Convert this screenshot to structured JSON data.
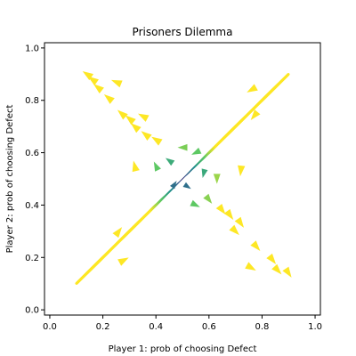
{
  "chart_data": {
    "type": "streamplot",
    "title": "Prisoners Dilemma",
    "xlabel": "Player 1: prob of choosing Defect",
    "ylabel": "Player 2: prob of choosing Defect",
    "xlim": [
      -0.02,
      1.02
    ],
    "ylim": [
      -0.02,
      1.02
    ],
    "xticks": [
      "0.0",
      "0.2",
      "0.4",
      "0.6",
      "0.8",
      "1.0"
    ],
    "yticks": [
      "0.0",
      "0.2",
      "0.4",
      "0.6",
      "0.8",
      "1.0"
    ],
    "grid": false,
    "colormap": "viridis",
    "field": {
      "x_range": [
        0.1,
        0.9
      ],
      "y_range": [
        0.1,
        0.9
      ],
      "color_by": "speed"
    },
    "arrow_anchors": [
      {
        "x": 0.14,
        "y": 0.9
      },
      {
        "x": 0.16,
        "y": 0.88
      },
      {
        "x": 0.18,
        "y": 0.85
      },
      {
        "x": 0.22,
        "y": 0.81
      },
      {
        "x": 0.25,
        "y": 0.87
      },
      {
        "x": 0.27,
        "y": 0.75
      },
      {
        "x": 0.3,
        "y": 0.73
      },
      {
        "x": 0.32,
        "y": 0.7
      },
      {
        "x": 0.35,
        "y": 0.74
      },
      {
        "x": 0.36,
        "y": 0.67
      },
      {
        "x": 0.4,
        "y": 0.65
      },
      {
        "x": 0.32,
        "y": 0.55
      },
      {
        "x": 0.4,
        "y": 0.55
      },
      {
        "x": 0.45,
        "y": 0.57
      },
      {
        "x": 0.5,
        "y": 0.62
      },
      {
        "x": 0.55,
        "y": 0.6
      },
      {
        "x": 0.47,
        "y": 0.48
      },
      {
        "x": 0.52,
        "y": 0.47
      },
      {
        "x": 0.58,
        "y": 0.52
      },
      {
        "x": 0.63,
        "y": 0.5
      },
      {
        "x": 0.55,
        "y": 0.4
      },
      {
        "x": 0.6,
        "y": 0.42
      },
      {
        "x": 0.65,
        "y": 0.38
      },
      {
        "x": 0.68,
        "y": 0.36
      },
      {
        "x": 0.7,
        "y": 0.3
      },
      {
        "x": 0.72,
        "y": 0.33
      },
      {
        "x": 0.78,
        "y": 0.24
      },
      {
        "x": 0.76,
        "y": 0.16
      },
      {
        "x": 0.84,
        "y": 0.19
      },
      {
        "x": 0.86,
        "y": 0.15
      },
      {
        "x": 0.9,
        "y": 0.14
      },
      {
        "x": 0.26,
        "y": 0.3
      },
      {
        "x": 0.28,
        "y": 0.19
      },
      {
        "x": 0.77,
        "y": 0.74
      },
      {
        "x": 0.76,
        "y": 0.84
      },
      {
        "x": 0.72,
        "y": 0.53
      }
    ]
  }
}
